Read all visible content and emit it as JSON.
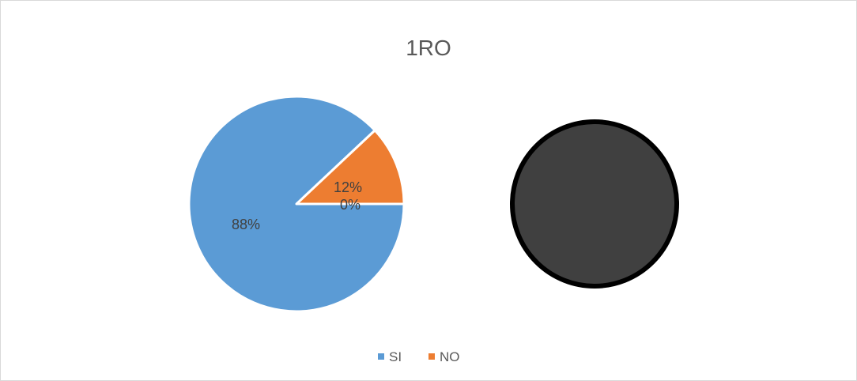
{
  "chart_data": {
    "type": "pie",
    "title": "1RO",
    "legend_position": "bottom",
    "series": [
      {
        "categories": [
          "SI",
          "NO"
        ],
        "values": [
          88,
          12
        ],
        "labels": [
          "88%",
          "12%"
        ],
        "colors": [
          "#5b9bd5",
          "#ed7d31"
        ]
      },
      {
        "categories": [
          "SI",
          "NO"
        ],
        "values": [
          0,
          0
        ],
        "labels": [
          "0%"
        ],
        "colors": [
          "#404040"
        ]
      }
    ],
    "legend": [
      {
        "label": "SI",
        "color": "#5b9bd5"
      },
      {
        "label": "NO",
        "color": "#ed7d31"
      }
    ]
  }
}
